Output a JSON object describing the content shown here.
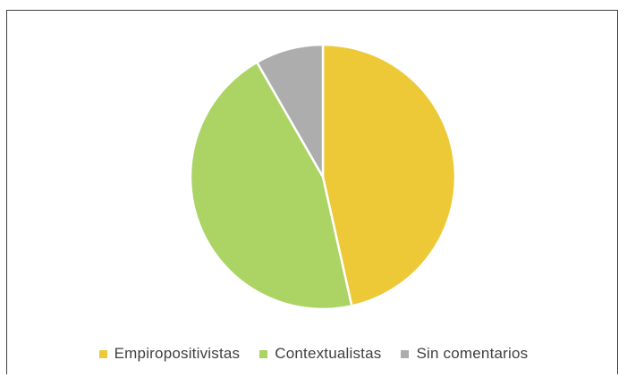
{
  "chart_data": {
    "type": "pie",
    "title": "",
    "series": [
      {
        "name": "",
        "categories": [
          "Empiropositivistas",
          "Contextualistas",
          "Sin comentarios"
        ],
        "values": [
          46.5,
          45.2,
          8.3
        ],
        "colors": [
          "#EDC937",
          "#ABD465",
          "#ADADAD"
        ]
      }
    ],
    "slice_border_color": "#FFFFFF",
    "legend": {
      "position": "bottom",
      "entries": [
        "Empiropositivistas",
        "Contextualistas",
        "Sin comentarios"
      ]
    }
  }
}
